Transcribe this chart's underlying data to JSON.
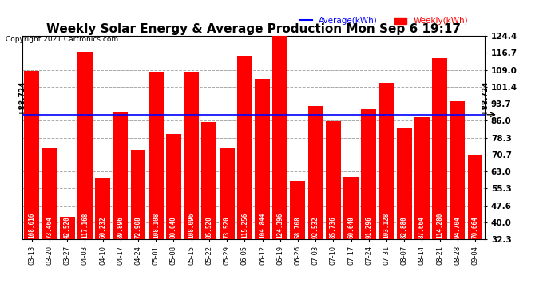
{
  "title": "Weekly Solar Energy & Average Production Mon Sep 6 19:17",
  "copyright": "Copyright 2021 Cartronics.com",
  "average_label": "Average(kWh)",
  "weekly_label": "Weekly(kWh)",
  "average_value": 88.724,
  "categories": [
    "03-13",
    "03-20",
    "03-27",
    "04-03",
    "04-10",
    "04-17",
    "04-24",
    "05-01",
    "05-08",
    "05-15",
    "05-22",
    "05-29",
    "06-05",
    "06-12",
    "06-19",
    "06-26",
    "07-03",
    "07-10",
    "07-17",
    "07-24",
    "07-31",
    "08-07",
    "08-14",
    "08-21",
    "08-28",
    "09-04"
  ],
  "values": [
    108.616,
    73.464,
    42.52,
    117.168,
    60.232,
    89.896,
    72.908,
    108.108,
    80.04,
    108.096,
    85.52,
    73.52,
    115.256,
    104.844,
    124.396,
    58.708,
    92.532,
    85.736,
    60.64,
    91.296,
    103.128,
    82.88,
    87.664,
    114.28,
    94.704,
    70.664
  ],
  "bar_color": "#FF0000",
  "avg_line_color": "#0000FF",
  "yticks": [
    32.3,
    40.0,
    47.6,
    55.3,
    63.0,
    70.7,
    78.3,
    86.0,
    93.7,
    101.4,
    109.0,
    116.7,
    124.4
  ],
  "ymin": 32.3,
  "ymax": 124.4,
  "background_color": "#FFFFFF",
  "grid_color": "#AAAAAA",
  "title_fontsize": 11,
  "bar_label_fontsize": 5.5,
  "avg_annotation": "+88.724"
}
